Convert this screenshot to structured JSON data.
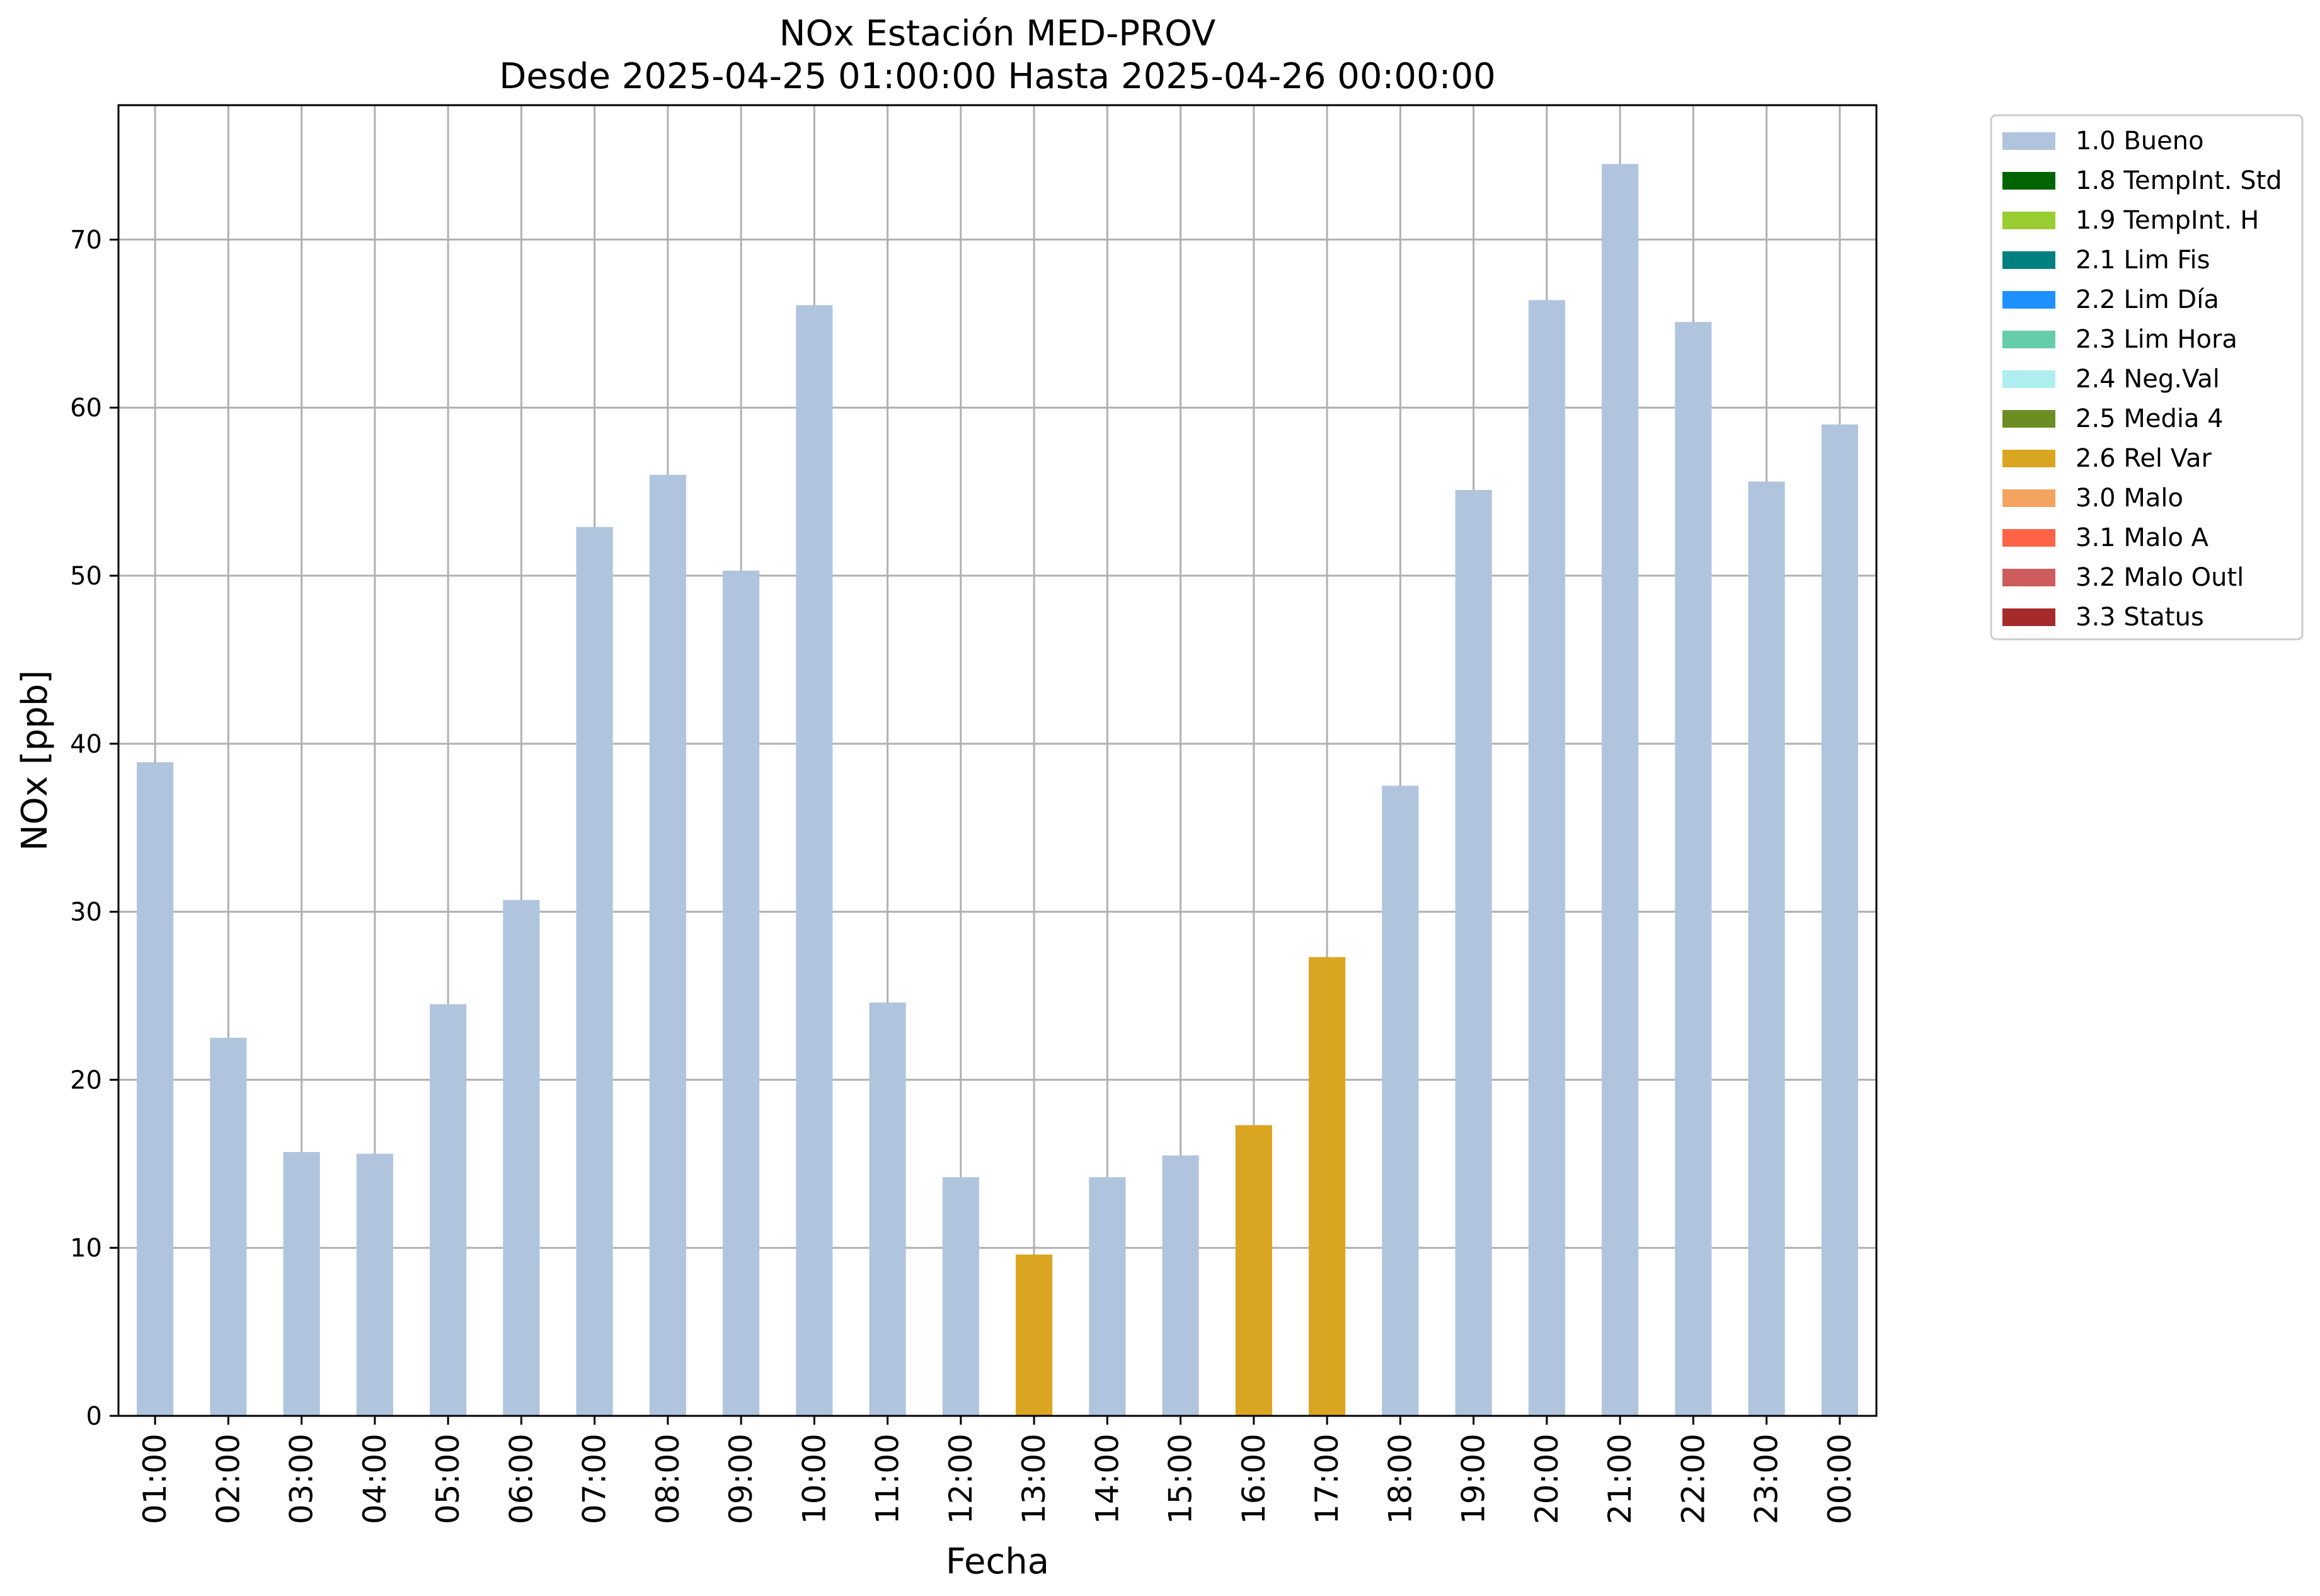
{
  "chart_data": {
    "type": "bar",
    "title_lines": [
      "NOx Estación MED-PROV",
      "Desde 2025-04-25 01:00:00 Hasta 2025-04-26 00:00:00"
    ],
    "xlabel": "Fecha",
    "ylabel": "NOx [ppb]",
    "ylim": [
      0,
      78
    ],
    "yticks": [
      0,
      10,
      20,
      30,
      40,
      50,
      60,
      70
    ],
    "grid": true,
    "legend_position": "outside-top-right",
    "categories": [
      "01:00",
      "02:00",
      "03:00",
      "04:00",
      "05:00",
      "06:00",
      "07:00",
      "08:00",
      "09:00",
      "10:00",
      "11:00",
      "12:00",
      "13:00",
      "14:00",
      "15:00",
      "16:00",
      "17:00",
      "18:00",
      "19:00",
      "20:00",
      "21:00",
      "22:00",
      "23:00",
      "00:00"
    ],
    "values": [
      38.9,
      22.5,
      15.7,
      15.6,
      24.5,
      30.7,
      52.9,
      56.0,
      50.3,
      66.1,
      24.6,
      14.2,
      9.6,
      14.2,
      15.5,
      17.3,
      27.3,
      37.5,
      55.1,
      66.4,
      74.5,
      65.1,
      55.6,
      59.0
    ],
    "flags": [
      "1.0 Bueno",
      "1.0 Bueno",
      "1.0 Bueno",
      "1.0 Bueno",
      "1.0 Bueno",
      "1.0 Bueno",
      "1.0 Bueno",
      "1.0 Bueno",
      "1.0 Bueno",
      "1.0 Bueno",
      "1.0 Bueno",
      "1.0 Bueno",
      "2.6 Rel Var",
      "1.0 Bueno",
      "1.0 Bueno",
      "2.6 Rel Var",
      "2.6 Rel Var",
      "1.0 Bueno",
      "1.0 Bueno",
      "1.0 Bueno",
      "1.0 Bueno",
      "1.0 Bueno",
      "1.0 Bueno",
      "1.0 Bueno"
    ],
    "legend": [
      {
        "label": "1.0 Bueno",
        "color": "#b0c4de"
      },
      {
        "label": "1.8 TempInt. Std",
        "color": "#006400"
      },
      {
        "label": "1.9 TempInt. H",
        "color": "#9acd32"
      },
      {
        "label": "2.1 Lim Fis",
        "color": "#008080"
      },
      {
        "label": "2.2 Lim Día",
        "color": "#1e90ff"
      },
      {
        "label": "2.3 Lim Hora",
        "color": "#66cdaa"
      },
      {
        "label": "2.4 Neg.Val",
        "color": "#afeeee"
      },
      {
        "label": "2.5 Media 4",
        "color": "#6b8e23"
      },
      {
        "label": "2.6 Rel Var",
        "color": "#daa520"
      },
      {
        "label": "3.0 Malo",
        "color": "#f4a460"
      },
      {
        "label": "3.1 Malo A",
        "color": "#ff6347"
      },
      {
        "label": "3.2 Malo Outl",
        "color": "#cd5c5c"
      },
      {
        "label": "3.3 Status",
        "color": "#a52a2a"
      }
    ],
    "colors": {
      "grid": "#b0b0b0",
      "axes": "#000000",
      "legend_border": "#cccccc"
    }
  }
}
